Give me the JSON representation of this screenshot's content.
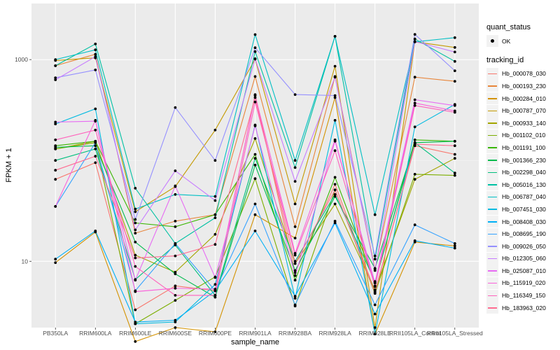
{
  "chart_data": {
    "type": "line",
    "title": "",
    "xlabel": "sample_name",
    "ylabel": "FPKM + 1",
    "yscale": "log10",
    "ylim": [
      2.2,
      3600
    ],
    "grid": true,
    "legend_position": "right",
    "x": [
      "PB350LA",
      "RRIM600LA",
      "RRIM600LE",
      "RRIM600SE",
      "RRIM600PE",
      "RRIM901LA",
      "RRIM928BA",
      "RRIM928LA",
      "RRIM928LE",
      "RRII105LA_Control",
      "RRII105LA_Stressed"
    ],
    "y_ticks": [
      {
        "value": 10,
        "label": "10"
      },
      {
        "value": 1000,
        "label": "1000"
      }
    ],
    "quant_status": {
      "title": "quant_status",
      "entries": [
        "OK"
      ]
    },
    "legend_title": "tracking_id",
    "series": [
      {
        "name": "Hb_000078_030",
        "color": "#F8766D",
        "values": [
          65,
          95,
          3.3,
          5.7,
          5.1,
          450,
          7.7,
          58,
          5.0,
          140,
          115
        ]
      },
      {
        "name": "Hb_000193_230",
        "color": "#E8853A",
        "values": [
          870,
          1130,
          19,
          25,
          29,
          680,
          22,
          680,
          8.4,
          670,
          610
        ]
      },
      {
        "name": "Hb_000284_010",
        "color": "#D39200",
        "values": [
          9.7,
          19.5,
          1.6,
          2.2,
          2.0,
          29,
          17,
          420,
          1.9,
          15.5,
          14.2
        ]
      },
      {
        "name": "Hb_000787_070",
        "color": "#C49A00",
        "values": [
          980,
          1040,
          31,
          55,
          200,
          1010,
          37,
          860,
          2.2,
          1500,
          1320
        ]
      },
      {
        "name": "Hb_000933_140",
        "color": "#A3A500",
        "values": [
          130,
          155,
          11.5,
          7.8,
          18.5,
          165,
          9.5,
          37,
          5.2,
          65,
          105
        ]
      },
      {
        "name": "Hb_001102_010",
        "color": "#7CAE00",
        "values": [
          130,
          150,
          2.4,
          4.1,
          7.0,
          66,
          3.6,
          51,
          4.8,
          73,
          71
        ]
      },
      {
        "name": "Hb_001191_100",
        "color": "#39B600",
        "values": [
          140,
          155,
          24,
          22,
          29,
          115,
          6.5,
          68,
          6.1,
          160,
          155
        ]
      },
      {
        "name": "Hb_001366_230",
        "color": "#00BB4E",
        "values": [
          135,
          140,
          15.5,
          7.5,
          4.4,
          90,
          8.1,
          44,
          8.5,
          150,
          155
        ]
      },
      {
        "name": "Hb_002298_040",
        "color": "#00BF7D",
        "values": [
          100,
          130,
          6.6,
          14.5,
          4.6,
          105,
          10,
          46,
          6.3,
          150,
          75
        ]
      },
      {
        "name": "Hb_005016_130",
        "color": "#00C1A3",
        "values": [
          870,
          1430,
          53,
          15,
          27,
          1200,
          85,
          1700,
          10.5,
          1600,
          960
        ]
      },
      {
        "name": "Hb_006787_040",
        "color": "#00BFC4",
        "values": [
          1000,
          1250,
          33,
          46,
          44,
          1770,
          100,
          1700,
          29,
          1500,
          1650
        ]
      },
      {
        "name": "Hb_007451_030",
        "color": "#00BAE0",
        "values": [
          230,
          325,
          2.4,
          2.5,
          5.9,
          225,
          4.3,
          250,
          1.9,
          215,
          360
        ]
      },
      {
        "name": "Hb_008408_030",
        "color": "#00B0F6",
        "values": [
          10.5,
          20,
          2.5,
          2.6,
          5.1,
          20,
          4.5,
          24,
          3.0,
          16,
          13.5
        ]
      },
      {
        "name": "Hb_008695_190",
        "color": "#35A2FF",
        "values": [
          35,
          150,
          5.1,
          15,
          5.1,
          37,
          3.7,
          25,
          3.7,
          23,
          15
        ]
      },
      {
        "name": "Hb_009026_050",
        "color": "#9590FF",
        "values": [
          660,
          790,
          26,
          335,
          100,
          1310,
          450,
          440,
          11.3,
          1780,
          775
        ]
      },
      {
        "name": "Hb_012305_060",
        "color": "#C77CFF",
        "values": [
          630,
          1070,
          20.5,
          79,
          40,
          1020,
          62,
          670,
          8.1,
          1510,
          1190
        ]
      },
      {
        "name": "Hb_025087_010",
        "color": "#E76BF3",
        "values": [
          240,
          245,
          6.5,
          56,
          6.9,
          220,
          7.2,
          155,
          6.1,
          400,
          350
        ]
      },
      {
        "name": "Hb_115919_020",
        "color": "#FA62DB",
        "values": [
          35,
          250,
          5.0,
          5.4,
          5.3,
          440,
          12,
          160,
          5.7,
          370,
          310
        ]
      },
      {
        "name": "Hb_116349_150",
        "color": "#FF62BC",
        "values": [
          160,
          200,
          8.9,
          4.6,
          4.6,
          380,
          11.5,
          125,
          5.6,
          350,
          300
        ]
      },
      {
        "name": "Hb_183963_020",
        "color": "#FF6C91",
        "values": [
          80,
          110,
          10.8,
          11.3,
          14.7,
          420,
          9.5,
          51,
          4.9,
          145,
          140
        ]
      }
    ]
  }
}
